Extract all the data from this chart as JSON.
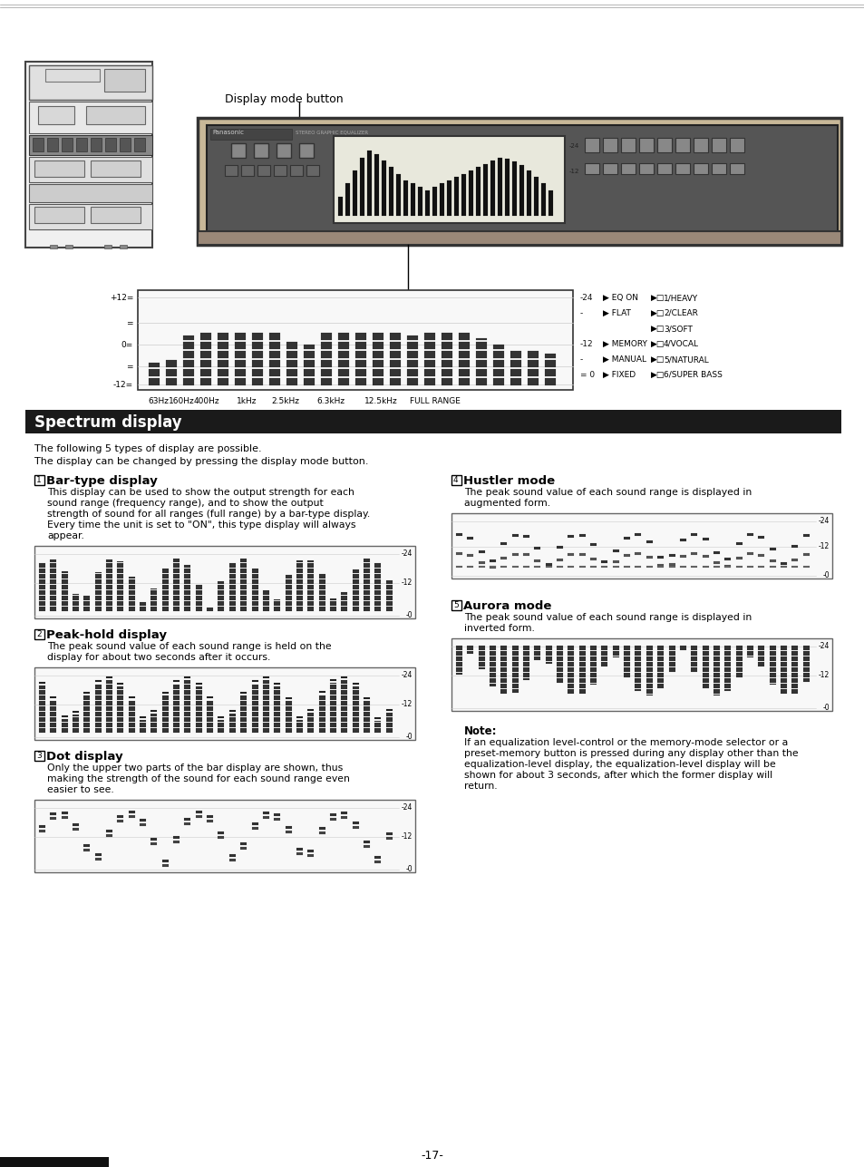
{
  "page_bg": "#ffffff",
  "page_number": "-17-",
  "top_label": "Display mode button",
  "section_title": "Spectrum display",
  "section_title_bg": "#1a1a1a",
  "section_title_color": "#ffffff",
  "intro_line1": "The following 5 types of display are possible.",
  "intro_line2": "The display can be changed by pressing the display mode button.",
  "sec1_num": "1",
  "sec1_title": "Bar-type display",
  "sec1_body": [
    "This display can be used to show the output strength for each",
    "sound range (frequency range), and to show the output",
    "strength of sound for all ranges (full range) by a bar-type display.",
    "Every time the unit is set to \"ON\", this type display will always",
    "appear."
  ],
  "sec2_num": "2",
  "sec2_title": "Peak-hold display",
  "sec2_body": [
    "The peak sound value of each sound range is held on the",
    "display for about two seconds after it occurs."
  ],
  "sec3_num": "3",
  "sec3_title": "Dot display",
  "sec3_body": [
    "Only the upper two parts of the bar display are shown, thus",
    "making the strength of the sound for each sound range even",
    "easier to see."
  ],
  "sec4_num": "4",
  "sec4_title": "Hustler mode",
  "sec4_body": [
    "The peak sound value of each sound range is displayed in",
    "augmented form."
  ],
  "sec5_num": "5",
  "sec5_title": "Aurora mode",
  "sec5_body": [
    "The peak sound value of each sound range is displayed in",
    "inverted form."
  ],
  "note_title": "Note:",
  "note_lines": [
    "If an equalization level-control or the memory-mode selector or a",
    "preset-memory button is pressed during any display other than the",
    "equalization-level display, the equalization-level display will be",
    "shown for about 3 seconds, after which the former display will",
    "return."
  ],
  "freq_labels": [
    "63Hz",
    "160Hz",
    "400Hz",
    "1kHz",
    "2.5kHz",
    "6.3kHz",
    "12.5kHz",
    "FULL RANGE"
  ],
  "eq_right_col1": [
    "-24",
    "",
    "",
    "-12",
    "",
    "= 0"
  ],
  "eq_right_col2": [
    "EQ ON",
    "FLAT",
    "",
    "MEMORY",
    "MANUAL",
    "FIXED"
  ],
  "eq_right_col3": [
    "1/HEAVY",
    "2/CLEAR",
    "3/SOFT",
    "4/VOCAL",
    "5/NATURAL",
    "6/SUPER BASS"
  ]
}
